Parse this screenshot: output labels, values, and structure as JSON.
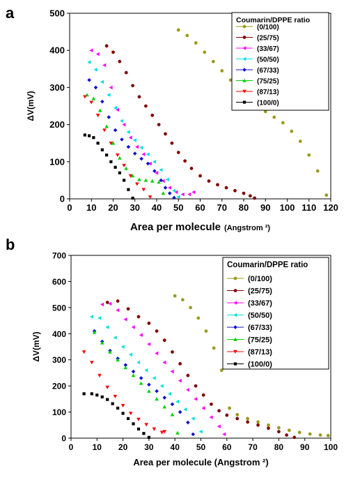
{
  "chart_data": [
    {
      "panel_label": "a",
      "type": "scatter",
      "xlabel_main": "Area per molecule",
      "xlabel_unit": "(Angstrom ²)",
      "ylabel": "ΔV(mV)",
      "xlim": [
        0,
        120
      ],
      "ylim": [
        0,
        500
      ],
      "xticks": [
        "0",
        "10",
        "20",
        "30",
        "40",
        "50",
        "60",
        "70",
        "80",
        "90",
        "100",
        "110",
        "120"
      ],
      "yticks": [
        "0",
        "100",
        "200",
        "300",
        "400",
        "500"
      ],
      "legend_title": "Coumarin/DPPE ratio",
      "legend_position": "top-right",
      "series": [
        {
          "name": "(0/100)",
          "color": "#9a9a1a",
          "marker": "circle",
          "x": [
            50,
            54,
            58,
            62,
            66,
            70,
            74,
            78,
            82,
            86,
            90,
            94,
            98,
            102,
            106,
            110,
            114,
            118
          ],
          "y": [
            455,
            440,
            420,
            395,
            370,
            345,
            320,
            295,
            270,
            252,
            235,
            220,
            205,
            182,
            155,
            118,
            75,
            10
          ]
        },
        {
          "name": "(25/75)",
          "color": "#800000",
          "marker": "circle",
          "x": [
            17,
            20,
            23,
            26,
            29,
            32,
            35,
            38,
            41,
            44,
            47,
            50,
            53,
            56,
            60,
            64,
            68,
            72,
            76,
            80,
            83,
            85
          ],
          "y": [
            412,
            395,
            370,
            340,
            305,
            275,
            250,
            225,
            200,
            175,
            150,
            125,
            102,
            82,
            62,
            48,
            38,
            30,
            22,
            15,
            8,
            2
          ]
        },
        {
          "name": "(33/67)",
          "color": "#ff00ff",
          "marker": "triangle-left",
          "x": [
            10,
            13,
            16,
            19,
            22,
            25,
            28,
            31,
            34,
            37,
            40,
            43,
            46,
            49,
            52,
            55,
            57
          ],
          "y": [
            400,
            390,
            360,
            300,
            240,
            200,
            165,
            140,
            120,
            95,
            70,
            48,
            30,
            18,
            12,
            12,
            18
          ]
        },
        {
          "name": "(50/50)",
          "color": "#00e0e0",
          "marker": "triangle-left",
          "x": [
            9,
            12,
            15,
            18,
            21,
            24,
            27,
            30,
            33,
            36,
            39,
            42,
            45,
            48,
            50
          ],
          "y": [
            368,
            348,
            315,
            280,
            245,
            210,
            180,
            158,
            138,
            120,
            100,
            78,
            52,
            22,
            5
          ]
        },
        {
          "name": "(67/33)",
          "color": "#1010d0",
          "marker": "diamond",
          "x": [
            9,
            12,
            15,
            18,
            21,
            24,
            27,
            30,
            33,
            36,
            39,
            42,
            44,
            46,
            48
          ],
          "y": [
            320,
            300,
            262,
            220,
            185,
            160,
            140,
            122,
            108,
            95,
            75,
            50,
            30,
            15,
            3
          ]
        },
        {
          "name": "(75/25)",
          "color": "#00d000",
          "marker": "triangle-up",
          "x": [
            8,
            11,
            14,
            17,
            20,
            23,
            26,
            29,
            32,
            35,
            38,
            41,
            43
          ],
          "y": [
            280,
            270,
            238,
            195,
            150,
            110,
            82,
            62,
            52,
            50,
            48,
            45,
            15
          ]
        },
        {
          "name": "(87/13)",
          "color": "#ff0000",
          "marker": "triangle-down",
          "x": [
            7,
            10,
            13,
            16,
            19,
            22,
            25,
            28,
            31,
            34,
            37
          ],
          "y": [
            275,
            260,
            225,
            185,
            150,
            118,
            90,
            62,
            40,
            25,
            5
          ]
        },
        {
          "name": "(100/0)",
          "color": "#000000",
          "marker": "square",
          "x": [
            7,
            9,
            11,
            13,
            15,
            17,
            19,
            21,
            23,
            25,
            27,
            29
          ],
          "y": [
            172,
            170,
            165,
            150,
            132,
            118,
            100,
            85,
            70,
            50,
            25,
            2
          ]
        }
      ]
    },
    {
      "panel_label": "b",
      "type": "scatter",
      "xlabel_main": "Area per molecule (Angstrom ²)",
      "xlabel_unit": "",
      "ylabel": "ΔV(mV)",
      "xlim": [
        0,
        100
      ],
      "ylim": [
        0,
        700
      ],
      "xticks": [
        "0",
        "10",
        "20",
        "30",
        "40",
        "50",
        "60",
        "70",
        "80",
        "90",
        "100"
      ],
      "yticks": [
        "0",
        "100",
        "200",
        "300",
        "400",
        "500",
        "600",
        "700"
      ],
      "legend_title": "Coumarin/DPPE ratio",
      "legend_position": "top-right",
      "series": [
        {
          "name": "(0/100)",
          "color": "#9a9a1a",
          "marker": "circle",
          "x": [
            40,
            43,
            46,
            49,
            52,
            55,
            58,
            61,
            64,
            68,
            72,
            76,
            80,
            84,
            88,
            92,
            96,
            99
          ],
          "y": [
            545,
            530,
            500,
            460,
            410,
            345,
            260,
            115,
            90,
            75,
            62,
            50,
            40,
            30,
            22,
            16,
            12,
            10
          ]
        },
        {
          "name": "(25/75)",
          "color": "#800000",
          "marker": "circle",
          "x": [
            14,
            18,
            22,
            26,
            30,
            33,
            36,
            39,
            42,
            45,
            48,
            51,
            54,
            57,
            60,
            64,
            68,
            72,
            76,
            80,
            83,
            86
          ],
          "y": [
            520,
            525,
            495,
            465,
            440,
            410,
            375,
            330,
            285,
            240,
            200,
            165,
            130,
            105,
            88,
            75,
            62,
            50,
            38,
            25,
            12,
            3
          ]
        },
        {
          "name": "(33/67)",
          "color": "#ff00ff",
          "marker": "triangle-left",
          "x": [
            12,
            15,
            18,
            21,
            24,
            27,
            30,
            33,
            36,
            39,
            42,
            45,
            48,
            51,
            54,
            57,
            59
          ],
          "y": [
            512,
            515,
            490,
            455,
            425,
            395,
            360,
            325,
            290,
            255,
            220,
            185,
            150,
            115,
            80,
            45,
            15
          ]
        },
        {
          "name": "(50/50)",
          "color": "#00e0e0",
          "marker": "triangle-left",
          "x": [
            8,
            11,
            14,
            17,
            20,
            23,
            26,
            29,
            32,
            35,
            38,
            41,
            44,
            47,
            50
          ],
          "y": [
            465,
            460,
            425,
            385,
            350,
            320,
            290,
            260,
            230,
            200,
            170,
            140,
            110,
            75,
            25
          ]
        },
        {
          "name": "(67/33)",
          "color": "#1010d0",
          "marker": "diamond",
          "x": [
            9,
            12,
            15,
            18,
            21,
            24,
            27,
            30,
            33,
            36,
            39,
            42,
            45,
            47
          ],
          "y": [
            410,
            370,
            335,
            305,
            280,
            255,
            230,
            205,
            180,
            155,
            130,
            100,
            60,
            15
          ]
        },
        {
          "name": "(75/25)",
          "color": "#00d000",
          "marker": "triangle-up",
          "x": [
            9,
            12,
            15,
            18,
            21,
            24,
            27,
            30,
            33,
            36,
            39,
            41
          ],
          "y": [
            405,
            365,
            330,
            300,
            270,
            240,
            210,
            180,
            150,
            120,
            90,
            20
          ]
        },
        {
          "name": "(87/13)",
          "color": "#ff0000",
          "marker": "triangle-down",
          "x": [
            5,
            8,
            11,
            14,
            17,
            20,
            23,
            26,
            29,
            32,
            35,
            36
          ],
          "y": [
            330,
            290,
            240,
            195,
            160,
            125,
            95,
            72,
            52,
            35,
            22,
            25
          ]
        },
        {
          "name": "(100/0)",
          "color": "#000000",
          "marker": "square",
          "x": [
            5,
            8,
            10,
            12,
            14,
            16,
            18,
            20,
            22,
            24,
            26,
            28,
            30
          ],
          "y": [
            170,
            170,
            165,
            158,
            148,
            132,
            115,
            95,
            75,
            55,
            35,
            18,
            3
          ]
        }
      ]
    }
  ]
}
